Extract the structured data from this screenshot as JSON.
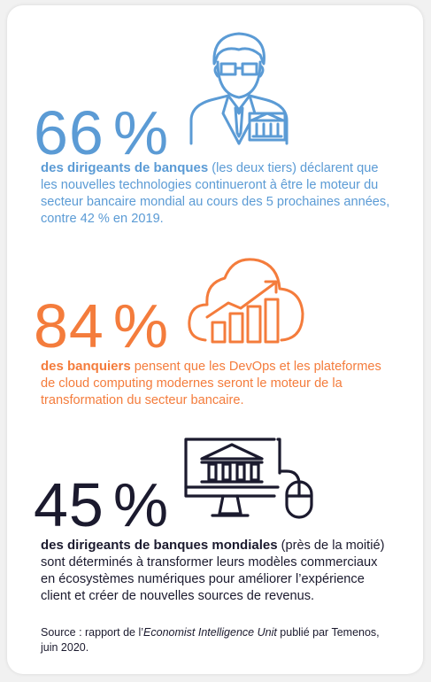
{
  "stats": [
    {
      "value": "66",
      "unit": "%",
      "lead": "des dirigeants de banques",
      "text": " (les deux tiers) déclarent que les nouvelles technologies continueront à être le moteur du secteur bancaire mondial au cours des 5 prochaines années, contre 42 % en 2019.",
      "color": "#5b9bd5",
      "icon": "banker-icon"
    },
    {
      "value": "84",
      "unit": "%",
      "lead": "des banquiers",
      "text": " pensent que les DevOps et les plateformes de cloud computing modernes seront le moteur de la transformation du secteur bancaire.",
      "color": "#f47c3c",
      "icon": "cloud-growth-chart-icon"
    },
    {
      "value": "45",
      "unit": "%",
      "lead": "des dirigeants de banques mondiales",
      "text": " (près de la moitié) sont déterminés à transformer leurs modèles commerciaux en écosystèmes numériques pour améliorer l’expérience client et créer de nouvelles sources de revenus.",
      "color": "#1b1a2e",
      "icon": "online-bank-icon"
    }
  ],
  "source": {
    "prefix": "Source : rapport de l’",
    "publication": "Economist Intelligence Unit",
    "suffix": " publié par Temenos, juin 2020."
  }
}
